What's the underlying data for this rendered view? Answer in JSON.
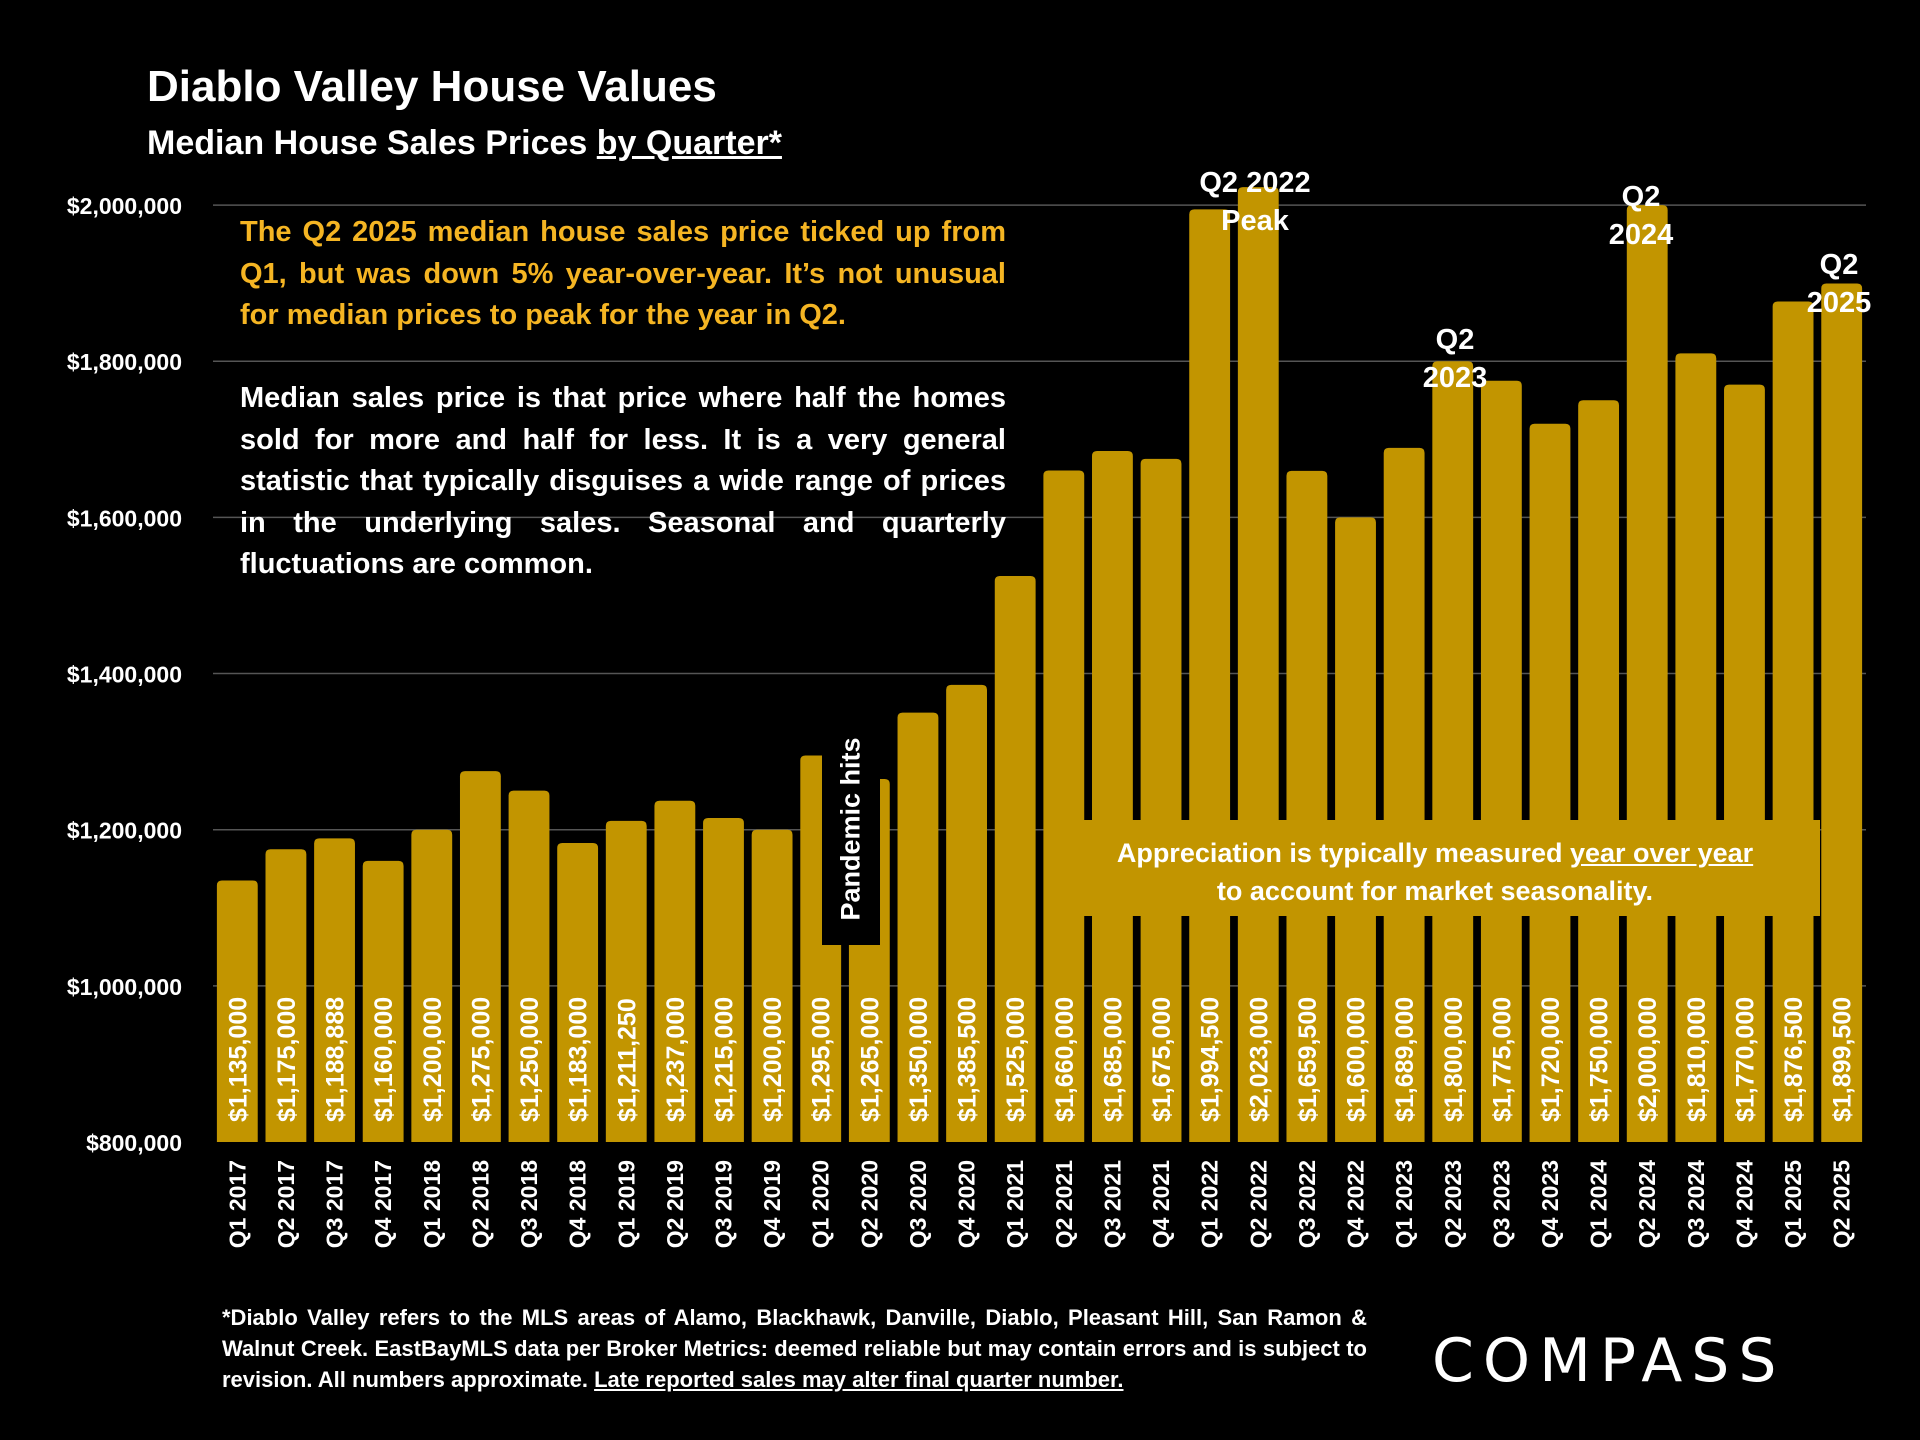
{
  "header": {
    "title": "Diablo Valley House Values",
    "subtitle_plain": "Median House Sales Prices ",
    "subtitle_underlined": "by Quarter*"
  },
  "intro": {
    "highlight": "The Q2 2025 median house sales price ticked up from Q1, but was down 5% year-over-year. It’s not unusual for median prices to peak for the year in Q2.",
    "body": "Median sales price is that price where half the homes sold for more and half for less. It is a very general statistic that typically disguises a wide range of prices in the underlying sales. Seasonal and quarterly fluctuations are common."
  },
  "annotations": {
    "pandemic": "Pandemic hits",
    "appreciation_before": "Appreciation is typically measured ",
    "appreciation_underlined": "year over year",
    "appreciation_after": "to account for market seasonality.",
    "peak_2022_line1": "Q2 2022",
    "peak_2022_line2": "Peak",
    "q2_2023_line1": "Q2",
    "q2_2023_line2": "2023",
    "q2_2024_line1": "Q2",
    "q2_2024_line2": "2024",
    "q2_2025_line1": "Q2",
    "q2_2025_line2": "2025"
  },
  "footnote": {
    "main": "*Diablo Valley refers to the MLS areas of Alamo, Blackhawk, Danville, Diablo, Pleasant Hill, San Ramon & Walnut Creek.  EastBayMLS data per Broker Metrics:  deemed reliable but may contain errors and is subject to revision. All numbers approximate. ",
    "underlined": "Late reported sales may alter final quarter number."
  },
  "brand": {
    "logo_text": "COMPASS"
  },
  "colors": {
    "bar": "#C29500",
    "highlight_text": "#F5B523",
    "background": "#000000",
    "grid": "#555555"
  },
  "chart_data": {
    "type": "bar",
    "title": "Diablo Valley House Values",
    "subtitle": "Median House Sales Prices by Quarter*",
    "categories": [
      "Q1 2017",
      "Q2 2017",
      "Q3 2017",
      "Q4 2017",
      "Q1 2018",
      "Q2 2018",
      "Q3 2018",
      "Q4 2018",
      "Q1 2019",
      "Q2 2019",
      "Q3 2019",
      "Q4 2019",
      "Q1 2020",
      "Q2 2020",
      "Q3 2020",
      "Q4 2020",
      "Q1 2021",
      "Q2 2021",
      "Q3 2021",
      "Q4 2021",
      "Q1 2022",
      "Q2 2022",
      "Q3 2022",
      "Q4 2022",
      "Q1 2023",
      "Q2 2023",
      "Q3 2023",
      "Q4 2023",
      "Q1 2024",
      "Q2 2024",
      "Q3 2024",
      "Q4 2024",
      "Q1 2025",
      "Q2 2025"
    ],
    "values": [
      1135000,
      1175000,
      1188888,
      1160000,
      1200000,
      1275000,
      1250000,
      1183000,
      1211250,
      1237000,
      1215000,
      1200000,
      1295000,
      1265000,
      1350000,
      1385500,
      1525000,
      1660000,
      1685000,
      1675000,
      1994500,
      2023000,
      1659500,
      1600000,
      1689000,
      1800000,
      1775000,
      1720000,
      1750000,
      2000000,
      1810000,
      1770000,
      1876500,
      1899500
    ],
    "value_labels": [
      "$1,135,000",
      "$1,175,000",
      "$1,188,888",
      "$1,160,000",
      "$1,200,000",
      "$1,275,000",
      "$1,250,000",
      "$1,183,000",
      "$1,211,250",
      "$1,237,000",
      "$1,215,000",
      "$1,200,000",
      "$1,295,000",
      "$1,265,000",
      "$1,350,000",
      "$1,385,500",
      "$1,525,000",
      "$1,660,000",
      "$1,685,000",
      "$1,675,000",
      "$1,994,500",
      "$2,023,000",
      "$1,659,500",
      "$1,600,000",
      "$1,689,000",
      "$1,800,000",
      "$1,775,000",
      "$1,720,000",
      "$1,750,000",
      "$2,000,000",
      "$1,810,000",
      "$1,770,000",
      "$1,876,500",
      "$1,899,500"
    ],
    "ylim": [
      800000,
      2100000
    ],
    "yticks": [
      800000,
      1000000,
      1200000,
      1400000,
      1600000,
      1800000,
      2000000
    ],
    "ytick_labels": [
      "$800,000",
      "$1,000,000",
      "$1,200,000",
      "$1,400,000",
      "$1,600,000",
      "$1,800,000",
      "$2,000,000"
    ],
    "grid": true,
    "legend": "none"
  }
}
